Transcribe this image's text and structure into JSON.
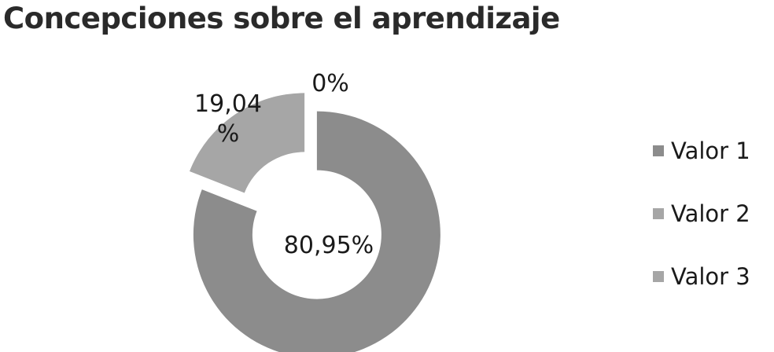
{
  "chart_data": {
    "type": "pie",
    "variant": "donut",
    "title": "Concepciones sobre el aprendizaje",
    "categories": [
      "Valor 1",
      "Valor 2",
      "Valor 3"
    ],
    "values": [
      80.95,
      0,
      19.04
    ],
    "data_labels": [
      "80,95%",
      "0%",
      "19,04 %"
    ],
    "colors": [
      "#8c8c8c",
      "#a6a6a6",
      "#a6a6a6"
    ],
    "exploded": true,
    "legend_position": "right"
  }
}
